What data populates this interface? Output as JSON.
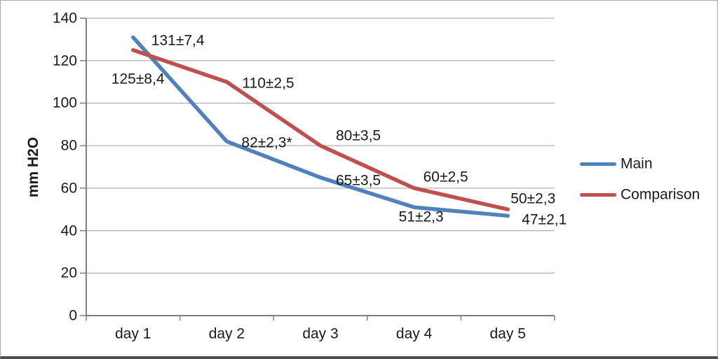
{
  "chart_data": {
    "type": "line",
    "title": "",
    "xlabel": "",
    "ylabel": "mm H2O",
    "categories": [
      "day 1",
      "day 2",
      "day 3",
      "day 4",
      "day 5"
    ],
    "ylim": [
      0,
      140
    ],
    "yticks": [
      0,
      20,
      40,
      60,
      80,
      100,
      120,
      140
    ],
    "grid": true,
    "legend_position": "right",
    "colors": {
      "grid": "#b2b2b2",
      "axis": "#7f7f7f",
      "text": "#1a1a1a"
    },
    "series": [
      {
        "name": "Main",
        "color": "#4F81BD",
        "values": [
          131,
          82,
          65,
          51,
          47
        ],
        "labels": [
          {
            "text": "131±7,4",
            "dx": 26,
            "dy": 5
          },
          {
            "text": "82±2,3*",
            "dx": 21,
            "dy": 2
          },
          {
            "text": "65±3,5",
            "dx": 22,
            "dy": 4
          },
          {
            "text": "51±2,3",
            "dx": -22,
            "dy": 14
          },
          {
            "text": "47±2,1",
            "dx": 20,
            "dy": 6
          }
        ]
      },
      {
        "name": "Comparison",
        "color": "#C0504D",
        "values": [
          125,
          110,
          80,
          60,
          50
        ],
        "labels": [
          {
            "text": "125±8,4",
            "dx": -31,
            "dy": 41
          },
          {
            "text": "110±2,5",
            "dx": 22,
            "dy": 2
          },
          {
            "text": "80±3,5",
            "dx": 22,
            "dy": -14
          },
          {
            "text": "60±2,5",
            "dx": 13,
            "dy": -16
          },
          {
            "text": "50±2,3",
            "dx": 4,
            "dy": -15
          }
        ]
      }
    ]
  }
}
